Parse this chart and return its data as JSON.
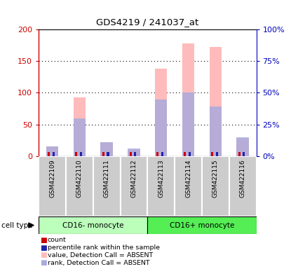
{
  "title": "GDS4219 / 241037_at",
  "samples": [
    "GSM422109",
    "GSM422110",
    "GSM422111",
    "GSM422112",
    "GSM422113",
    "GSM422114",
    "GSM422115",
    "GSM422116"
  ],
  "groups": [
    "CD16- monocyte",
    "CD16+ monocyte"
  ],
  "ylim_left": [
    0,
    200
  ],
  "ylim_right": [
    0,
    100
  ],
  "yticks_left": [
    0,
    50,
    100,
    150,
    200
  ],
  "ytick_labels_left": [
    "0",
    "50",
    "100",
    "150",
    "200"
  ],
  "yticks_right": [
    0,
    25,
    50,
    75,
    100
  ],
  "ytick_labels_right": [
    "0%",
    "25%",
    "50%",
    "75%",
    "100%"
  ],
  "pink_values": [
    15,
    93,
    22,
    10,
    138,
    178,
    173,
    27
  ],
  "blue_rank_values": [
    7.5,
    30,
    11,
    6,
    45,
    50,
    39,
    15
  ],
  "count_red_values": [
    6,
    6,
    6,
    6,
    6,
    6,
    6,
    6
  ],
  "count_blue_values": [
    6,
    6,
    6,
    6,
    6,
    6,
    6,
    6
  ],
  "pink_color": "#FFBBBB",
  "blue_color": "#AAAADD",
  "red_color": "#CC0000",
  "dark_blue_color": "#2222AA",
  "left_axis_color": "#CC0000",
  "right_axis_color": "#0000BB",
  "group1_color": "#BBFFBB",
  "group2_color": "#55EE55",
  "sample_box_color": "#CCCCCC",
  "label_cell_type": "cell type"
}
